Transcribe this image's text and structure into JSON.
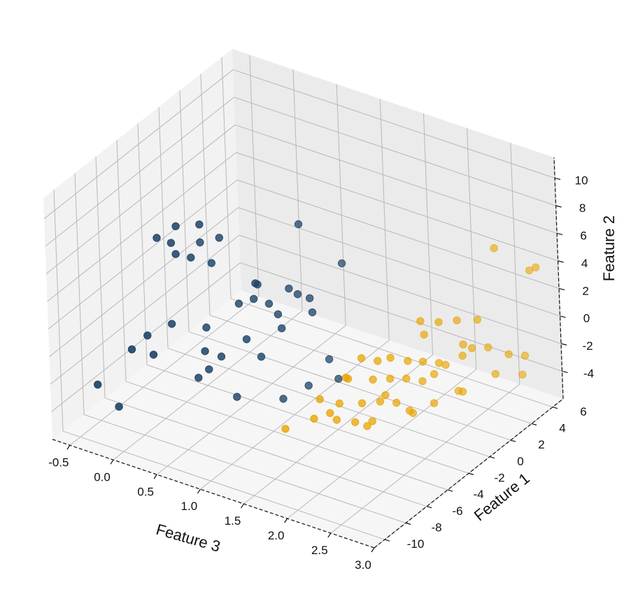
{
  "chart_data": {
    "type": "scatter",
    "projection": "3d",
    "grid": true,
    "axes": {
      "x": {
        "label": "Feature 3",
        "lim": [
          -0.7,
          3.0
        ],
        "ticks": [
          "-0.5",
          "0.0",
          "0.5",
          "1.0",
          "1.5",
          "2.0",
          "2.5",
          "3.0"
        ],
        "tick_values": [
          -0.5,
          0.0,
          0.5,
          1.0,
          1.5,
          2.0,
          2.5,
          3.0
        ]
      },
      "y": {
        "label": "Feature 1",
        "lim": [
          -11,
          7
        ],
        "ticks": [
          "-10",
          "-8",
          "-6",
          "-4",
          "-2",
          "0",
          "2",
          "4",
          "6"
        ],
        "tick_values": [
          -10,
          -8,
          -6,
          -4,
          -2,
          0,
          2,
          4,
          6
        ]
      },
      "z": {
        "label": "Feature 2",
        "lim": [
          -6,
          11.5
        ],
        "ticks": [
          "-4",
          "-2",
          "0",
          "2",
          "4",
          "6",
          "8",
          "10"
        ],
        "tick_values": [
          -4,
          -2,
          0,
          2,
          4,
          6,
          8,
          10
        ]
      }
    },
    "panes": {
      "xz_color": "#ebebeb",
      "yz_color": "#f2f2f2",
      "floor_color": "#f6f6f6"
    },
    "series": [
      {
        "color": "#1f4466",
        "points": [
          [
            0.2,
            -7.8,
            8.6
          ],
          [
            0.35,
            -7.2,
            9.4
          ],
          [
            0.25,
            -6.9,
            7.8
          ],
          [
            0.55,
            -6.6,
            9.6
          ],
          [
            0.4,
            -6.3,
            6.7
          ],
          [
            0.3,
            -6.9,
            7.1
          ],
          [
            0.45,
            -5.8,
            7.6
          ],
          [
            0.6,
            -5.2,
            7.9
          ],
          [
            0.55,
            -5.6,
            6.2
          ],
          [
            1.1,
            -1.8,
            7.9
          ],
          [
            1.4,
            -0.3,
            4.8
          ],
          [
            0.85,
            -4.2,
            3.4
          ],
          [
            0.95,
            -3.6,
            2.9
          ],
          [
            0.75,
            -4.8,
            3.2
          ],
          [
            0.5,
            -5.9,
            1.6
          ],
          [
            0.3,
            -7.5,
            2.4
          ],
          [
            0.15,
            -8.6,
            1.9
          ],
          [
            0.05,
            -9.3,
            1.1
          ],
          [
            0.25,
            -8.9,
            0.9
          ],
          [
            0.6,
            -6.9,
            0.7
          ],
          [
            0.7,
            -6.2,
            0.1
          ],
          [
            0.6,
            -6.6,
            -0.8
          ],
          [
            0.9,
            -5.4,
            1.3
          ],
          [
            0.95,
            -4.5,
            -0.4
          ],
          [
            1.0,
            -3.2,
            2.0
          ],
          [
            1.1,
            -3.7,
            1.5
          ],
          [
            1.2,
            -2.9,
            3.7
          ],
          [
            0.85,
            -3.8,
            4.2
          ],
          [
            0.5,
            -6.8,
            -1.5
          ],
          [
            0.7,
            -4.9,
            -3.6
          ],
          [
            -0.3,
            -9.8,
            -1.9
          ],
          [
            -0.15,
            -9.1,
            -3.6
          ],
          [
            1.35,
            -1.4,
            -1.6
          ],
          [
            1.25,
            -2.6,
            -3.0
          ],
          [
            1.05,
            -3.4,
            -3.9
          ],
          [
            1.3,
            -2.4,
            2.3
          ],
          [
            0.95,
            -4.8,
            5.1
          ],
          [
            1.1,
            -2.9,
            3.9
          ],
          [
            1.25,
            -2.2,
            3.1
          ],
          [
            1.45,
            -1.4,
            -2.8
          ]
        ]
      },
      {
        "color": "#e8a300",
        "points": [
          [
            2.1,
            1.2,
            1.2
          ],
          [
            2.2,
            2.1,
            0.8
          ],
          [
            2.3,
            3.0,
            0.6
          ],
          [
            2.05,
            1.9,
            -0.3
          ],
          [
            2.4,
            4.1,
            0.2
          ],
          [
            2.5,
            5.1,
            5.0
          ],
          [
            2.75,
            6.3,
            3.2
          ],
          [
            2.8,
            6.5,
            3.4
          ],
          [
            1.7,
            -1.2,
            -0.9
          ],
          [
            1.8,
            -0.5,
            -1.3
          ],
          [
            1.9,
            -0.1,
            -1.1
          ],
          [
            2.0,
            0.7,
            -1.6
          ],
          [
            2.1,
            1.3,
            -1.8
          ],
          [
            2.2,
            2.0,
            -2.1
          ],
          [
            2.35,
            3.1,
            -1.1
          ],
          [
            2.4,
            3.5,
            -1.5
          ],
          [
            1.6,
            -1.7,
            -2.3
          ],
          [
            1.75,
            -0.6,
            -2.7
          ],
          [
            1.85,
            0.2,
            -2.9
          ],
          [
            1.95,
            0.9,
            -3.1
          ],
          [
            2.05,
            1.6,
            -3.5
          ],
          [
            2.2,
            2.6,
            -2.6
          ],
          [
            2.3,
            3.4,
            -2.2
          ],
          [
            2.45,
            4.6,
            -2.0
          ],
          [
            2.6,
            5.3,
            -2.6
          ],
          [
            2.7,
            6.0,
            -2.9
          ],
          [
            1.45,
            -3.2,
            -3.2
          ],
          [
            1.55,
            -2.2,
            -3.9
          ],
          [
            1.7,
            -1.3,
            -4.1
          ],
          [
            1.8,
            -0.4,
            -4.3
          ],
          [
            1.9,
            0.3,
            -4.6
          ],
          [
            1.55,
            -2.5,
            -4.9
          ],
          [
            1.65,
            -1.6,
            -5.4
          ],
          [
            1.75,
            -0.8,
            -5.6
          ],
          [
            2.0,
            0.7,
            -5.2
          ],
          [
            2.15,
            1.8,
            -5.0
          ],
          [
            2.35,
            2.9,
            -4.4
          ],
          [
            2.55,
            4.4,
            -3.6
          ],
          [
            2.7,
            5.7,
            -4.1
          ],
          [
            1.4,
            -3.4,
            -4.6
          ],
          [
            1.6,
            -1.9,
            -2.1
          ],
          [
            1.5,
            -2.7,
            -4.4
          ],
          [
            1.85,
            -0.3,
            -3.8
          ],
          [
            2.25,
            3.3,
            -4.8
          ],
          [
            1.95,
            1.4,
            -5.9
          ],
          [
            1.7,
            -0.9,
            -6.0
          ],
          [
            1.2,
            -4.5,
            -5.1
          ],
          [
            2.1,
            2.3,
            -3.3
          ]
        ]
      }
    ]
  }
}
